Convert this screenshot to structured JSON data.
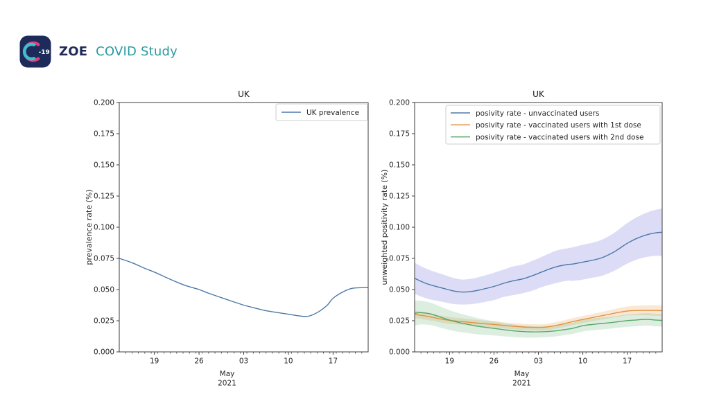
{
  "page": {
    "background": "#ffffff"
  },
  "logo": {
    "icon_text": "-19",
    "brand_bold": "ZOE",
    "brand_rest": "COVID Study",
    "tile_color": "#1c2b5a",
    "arc_pink": "#e23e7b",
    "arc_teal": "#3cc0ce",
    "brand_navy": "#1f2a56",
    "brand_teal": "#2a9aa0"
  },
  "chart_data": [
    {
      "type": "line",
      "title": "UK",
      "ylabel": "prevalence rate (%)",
      "xlabel_lines": [
        "May",
        "2021"
      ],
      "xlim": [
        0,
        39
      ],
      "ylim": [
        0,
        0.2
      ],
      "grid": false,
      "legend_position": "upper-right",
      "yticks": [
        {
          "v": 0.0,
          "label": "0.000"
        },
        {
          "v": 0.025,
          "label": "0.025"
        },
        {
          "v": 0.05,
          "label": "0.050"
        },
        {
          "v": 0.075,
          "label": "0.075"
        },
        {
          "v": 0.1,
          "label": "0.100"
        },
        {
          "v": 0.125,
          "label": "0.125"
        },
        {
          "v": 0.15,
          "label": "0.150"
        },
        {
          "v": 0.175,
          "label": "0.175"
        },
        {
          "v": 0.2,
          "label": "0.200"
        }
      ],
      "xticks": [
        {
          "pos": 5.5,
          "label": "19"
        },
        {
          "pos": 12.5,
          "label": "26"
        },
        {
          "pos": 19.5,
          "label": "03"
        },
        {
          "pos": 26.5,
          "label": "10"
        },
        {
          "pos": 33.5,
          "label": "17"
        }
      ],
      "series": [
        {
          "name": "UK prevalence",
          "color": "#4c78a8",
          "x": [
            0,
            2,
            4,
            5.5,
            7,
            9,
            10.5,
            12.5,
            14,
            16,
            18,
            19.5,
            21,
            23,
            24.5,
            26.5,
            28,
            29.5,
            31,
            32.5,
            33.5,
            35,
            36.5,
            38,
            39
          ],
          "y": [
            0.075,
            0.0715,
            0.067,
            0.064,
            0.0605,
            0.056,
            0.053,
            0.05,
            0.047,
            0.0435,
            0.04,
            0.0375,
            0.0355,
            0.033,
            0.0318,
            0.0302,
            0.029,
            0.0285,
            0.0315,
            0.037,
            0.043,
            0.048,
            0.051,
            0.0515,
            0.0515
          ]
        }
      ]
    },
    {
      "type": "line",
      "title": "UK",
      "ylabel": "unweighted positivity rate (%)",
      "xlabel_lines": [
        "May",
        "2021"
      ],
      "xlim": [
        0,
        39
      ],
      "ylim": [
        0,
        0.2
      ],
      "grid": false,
      "legend_position": "upper-left",
      "yticks": [
        {
          "v": 0.0,
          "label": "0.000"
        },
        {
          "v": 0.025,
          "label": "0.025"
        },
        {
          "v": 0.05,
          "label": "0.050"
        },
        {
          "v": 0.075,
          "label": "0.075"
        },
        {
          "v": 0.1,
          "label": "0.100"
        },
        {
          "v": 0.125,
          "label": "0.125"
        },
        {
          "v": 0.15,
          "label": "0.150"
        },
        {
          "v": 0.175,
          "label": "0.175"
        },
        {
          "v": 0.2,
          "label": "0.200"
        }
      ],
      "xticks": [
        {
          "pos": 5.5,
          "label": "19"
        },
        {
          "pos": 12.5,
          "label": "26"
        },
        {
          "pos": 19.5,
          "label": "03"
        },
        {
          "pos": 26.5,
          "label": "10"
        },
        {
          "pos": 33.5,
          "label": "17"
        }
      ],
      "series": [
        {
          "name": "posivity rate - unvaccinated users",
          "color": "#4c78a8",
          "band_color": "rgba(80,80,210,0.20)",
          "x": [
            0,
            1.5,
            3,
            4.5,
            6,
            7.5,
            9,
            10.5,
            12.5,
            14,
            15.5,
            17,
            18.5,
            19.5,
            21,
            22.5,
            24,
            25,
            26.5,
            28,
            29.5,
            31,
            32,
            33,
            34,
            35,
            36,
            37,
            38,
            39
          ],
          "y": [
            0.059,
            0.0555,
            0.053,
            0.051,
            0.049,
            0.048,
            0.0485,
            0.05,
            0.0525,
            0.055,
            0.057,
            0.0585,
            0.061,
            0.063,
            0.066,
            0.0685,
            0.07,
            0.0705,
            0.072,
            0.0735,
            0.0755,
            0.079,
            0.082,
            0.0855,
            0.0885,
            0.091,
            0.093,
            0.0945,
            0.0955,
            0.096
          ],
          "band_halfwidth": [
            0.0125,
            0.012,
            0.0115,
            0.011,
            0.0105,
            0.01,
            0.0102,
            0.0105,
            0.011,
            0.011,
            0.0115,
            0.0115,
            0.012,
            0.012,
            0.0125,
            0.013,
            0.013,
            0.0135,
            0.014,
            0.014,
            0.0145,
            0.015,
            0.0155,
            0.016,
            0.0165,
            0.017,
            0.0175,
            0.018,
            0.0185,
            0.019
          ]
        },
        {
          "name": "posivity rate - vaccinated users with 1st dose",
          "color": "#e0923e",
          "band_color": "rgba(230,150,60,0.22)",
          "x": [
            0,
            1.5,
            3,
            4.5,
            6,
            7.5,
            9,
            10.5,
            12.5,
            14,
            15.5,
            17,
            18.5,
            20,
            21.5,
            23,
            24.5,
            26,
            27.5,
            29,
            30.5,
            32,
            33.5,
            35,
            36.5,
            38,
            39
          ],
          "y": [
            0.03,
            0.029,
            0.0275,
            0.026,
            0.025,
            0.0243,
            0.0235,
            0.0228,
            0.022,
            0.0213,
            0.0206,
            0.02,
            0.0197,
            0.0196,
            0.0205,
            0.022,
            0.0238,
            0.0255,
            0.027,
            0.0285,
            0.03,
            0.0315,
            0.0328,
            0.0332,
            0.0333,
            0.0332,
            0.033
          ],
          "band_halfwidth": [
            0.003,
            0.003,
            0.0028,
            0.0028,
            0.0027,
            0.0026,
            0.0026,
            0.0025,
            0.0025,
            0.0025,
            0.0025,
            0.0025,
            0.0025,
            0.0026,
            0.0026,
            0.0027,
            0.0028,
            0.0028,
            0.0029,
            0.003,
            0.0032,
            0.0034,
            0.0036,
            0.0038,
            0.004,
            0.0042,
            0.0042
          ]
        },
        {
          "name": "posivity rate  - vaccinated users with 2nd dose",
          "color": "#55a868",
          "band_color": "rgba(85,168,104,0.20)",
          "x": [
            0,
            1,
            2.5,
            4,
            5.5,
            7,
            8.5,
            10,
            11.5,
            13,
            14.5,
            16,
            17.5,
            19,
            20.5,
            22,
            23.5,
            25,
            26.5,
            28,
            29.5,
            31,
            32.5,
            34,
            35,
            36,
            37,
            38,
            39
          ],
          "y": [
            0.031,
            0.0315,
            0.0305,
            0.028,
            0.0255,
            0.0235,
            0.022,
            0.0205,
            0.0195,
            0.0185,
            0.0175,
            0.0167,
            0.0162,
            0.016,
            0.0162,
            0.0168,
            0.0178,
            0.019,
            0.021,
            0.022,
            0.0228,
            0.0235,
            0.0245,
            0.0253,
            0.0256,
            0.026,
            0.026,
            0.0255,
            0.0253
          ],
          "band_halfwidth": [
            0.01,
            0.0095,
            0.009,
            0.0085,
            0.008,
            0.0075,
            0.007,
            0.0065,
            0.006,
            0.0055,
            0.0052,
            0.005,
            0.0048,
            0.0046,
            0.0045,
            0.0045,
            0.0045,
            0.0045,
            0.0046,
            0.0047,
            0.0048,
            0.0048,
            0.0049,
            0.005,
            0.005,
            0.005,
            0.005,
            0.005,
            0.005
          ]
        }
      ]
    }
  ]
}
